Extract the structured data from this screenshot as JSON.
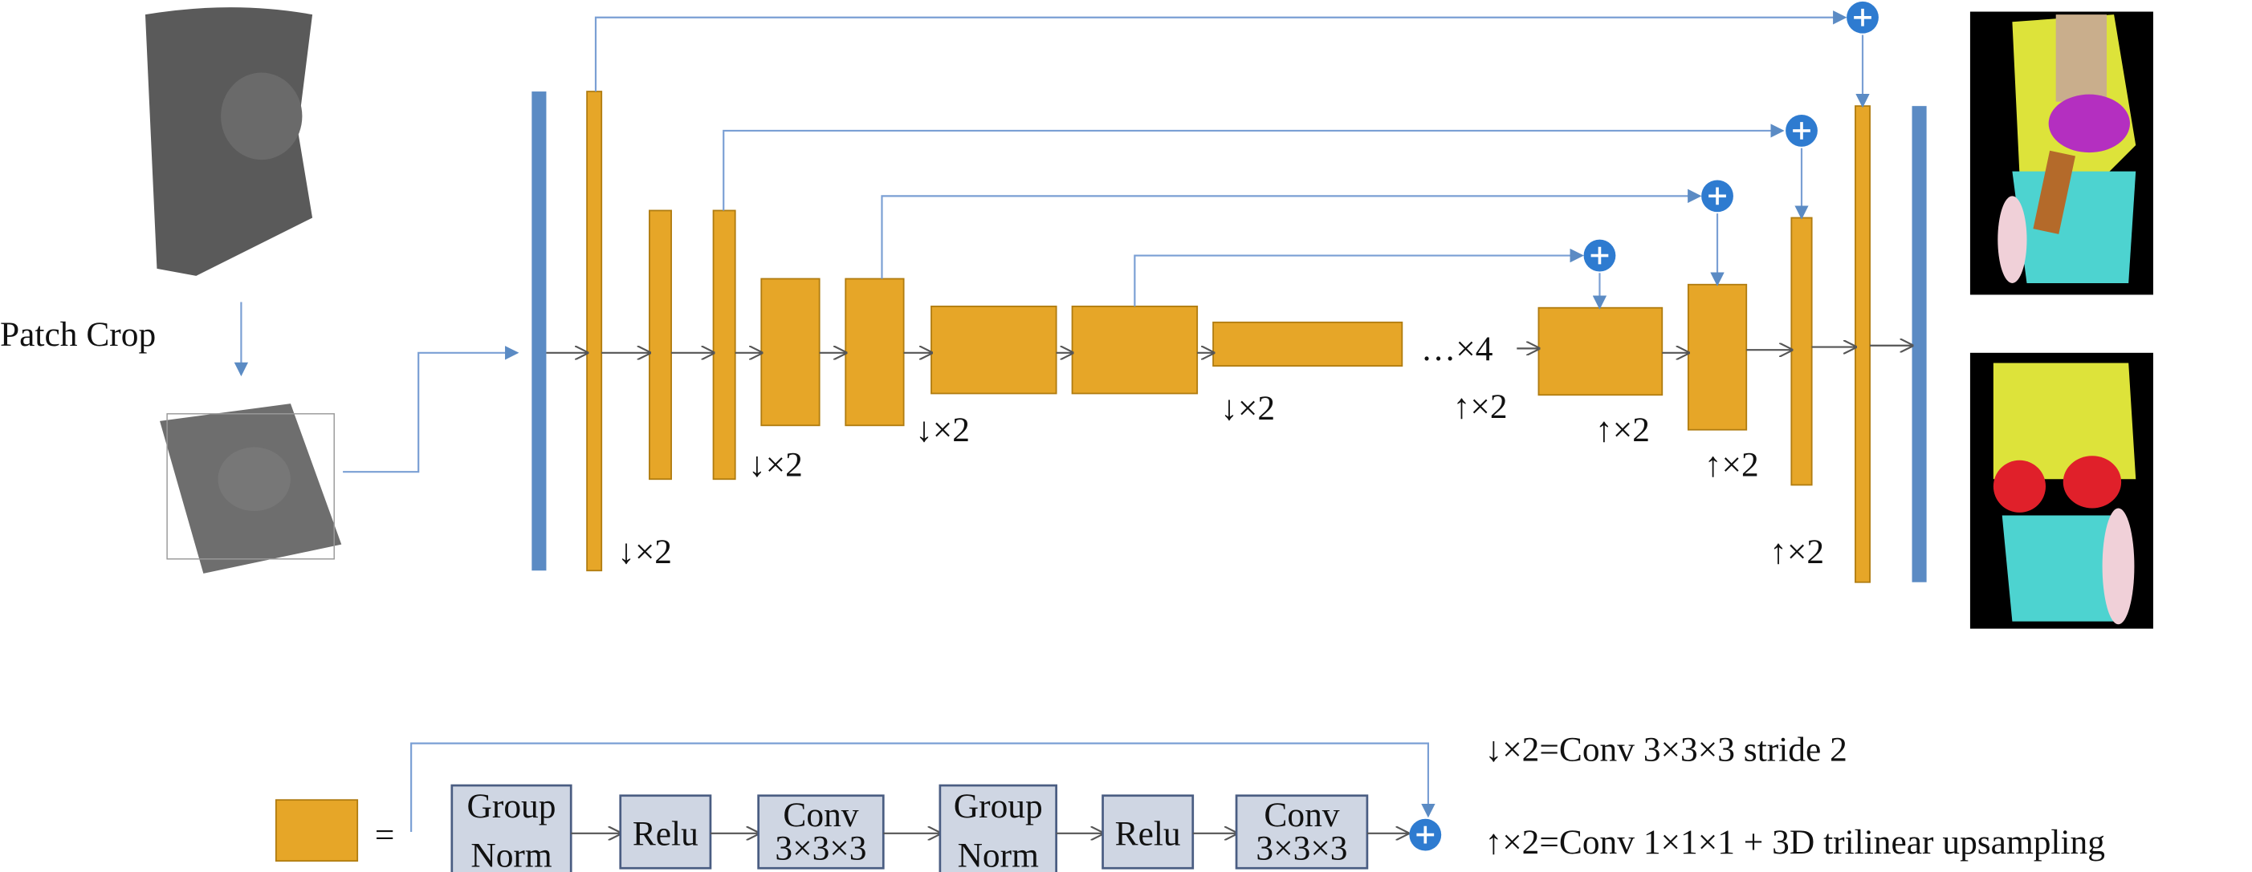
{
  "input_label": "Patch Crop",
  "encoder_labels": [
    "↓×2",
    "↓×2",
    "↓×2",
    "↓×2"
  ],
  "bottleneck_repeat": "…×4",
  "decoder_labels": [
    "↑×2",
    "↑×2",
    "↑×2",
    "↑×2"
  ],
  "block_legend": {
    "equals": "=",
    "steps": [
      [
        "Group",
        "Norm"
      ],
      [
        "Relu"
      ],
      [
        "Conv",
        "3×3×3"
      ],
      [
        "Group",
        "Norm"
      ],
      [
        "Relu"
      ],
      [
        "Conv",
        "3×3×3"
      ]
    ]
  },
  "definitions": [
    "↓×2=Conv 3×3×3 stride 2",
    "↑×2=Conv 1×1×1 + 3D trilinear upsampling"
  ]
}
